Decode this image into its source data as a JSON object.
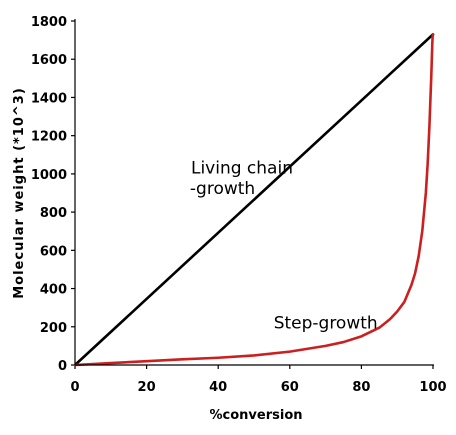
{
  "chart_data": {
    "type": "line",
    "xlabel": "%conversion",
    "ylabel": "Molecular weight (*10^3)",
    "xlim": [
      0,
      100
    ],
    "ylim": [
      0,
      1800
    ],
    "xticks": [
      "0",
      "20",
      "40",
      "60",
      "80",
      "100"
    ],
    "yticks": [
      "0",
      "200",
      "400",
      "600",
      "800",
      "1000",
      "1200",
      "1400",
      "1600",
      "1800"
    ],
    "grid": false,
    "annotations": [
      {
        "lines": [
          "Living chain",
          "-growth"
        ]
      },
      {
        "lines": [
          "Step-growth"
        ]
      }
    ],
    "series": [
      {
        "color": "#000000",
        "x": [
          0,
          100
        ],
        "y": [
          0,
          1730
        ]
      },
      {
        "color": "#cc1f1f",
        "x": [
          0,
          10,
          20,
          30,
          40,
          50,
          60,
          70,
          75,
          80,
          85,
          88,
          90,
          92,
          94,
          95,
          96,
          97,
          98,
          98.5,
          99,
          99.3,
          99.5,
          99.7,
          99.8,
          99.9,
          100
        ],
        "y": [
          0,
          10,
          20,
          30,
          38,
          50,
          70,
          100,
          120,
          150,
          195,
          240,
          280,
          330,
          420,
          480,
          570,
          700,
          900,
          1050,
          1250,
          1400,
          1500,
          1620,
          1680,
          1720,
          1730
        ]
      }
    ]
  }
}
